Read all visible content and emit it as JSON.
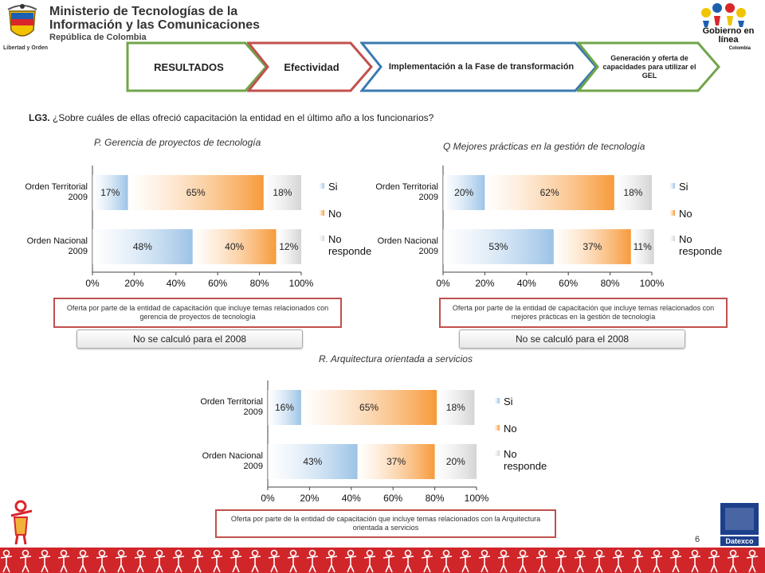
{
  "header": {
    "ministry_line1": "Ministerio de Tecnologías de la",
    "ministry_line2": "Información y las Comunicaciones",
    "ministry_line3": "República de Colombia",
    "seal_tagline": "Libertad y Orden",
    "gel_line1": "Gobierno en línea",
    "gel_line2": "Colombia"
  },
  "nav": {
    "step1": "RESULTADOS",
    "step2": "Efectividad",
    "step3": "Implementación  a la Fase de transformación",
    "step4": "Generación y oferta de capacidades para utilizar el GEL",
    "colors": {
      "green": "#70a54a",
      "red": "#c0504d",
      "blue": "#3a7ab0"
    }
  },
  "question": {
    "code": "LG3.",
    "text": "¿Sobre cuáles de ellas ofreció capacitación la entidad en el último año a los  funcionarios?"
  },
  "charts": {
    "p": {
      "title": "P. Gerencia  de proyectos de tecnología",
      "note": "Oferta por parte de la entidad de capacitación que incluye temas relacionados con gerencia de proyectos de tecnología",
      "calc": "No se calculó para el 2008"
    },
    "q": {
      "title": "Q Mejores prácticas en la gestión de tecnología",
      "note": "Oferta por parte de la entidad de capacitación que incluye temas relacionados con mejores prácticas en la gestión de tecnología",
      "calc": "No se calculó para el 2008"
    },
    "r": {
      "title": "R. Arquitectura orientada a servicios",
      "note": "Oferta por parte de la entidad de capacitación que incluye temas relacionados con la Arquitectura orientada a servicios"
    }
  },
  "page_number": "6",
  "datexco_label": "Datexco",
  "chart_data": [
    {
      "type": "bar",
      "orientation": "horizontal",
      "stacked": true,
      "title": "P. Gerencia  de proyectos de tecnología",
      "categories": [
        "Orden Territorial 2009",
        "Orden Nacional 2009"
      ],
      "series": [
        {
          "name": "Si",
          "values": [
            17,
            48
          ],
          "color": "#9cc3e6"
        },
        {
          "name": "No",
          "values": [
            65,
            40
          ],
          "color": "#f79a3a"
        },
        {
          "name": "No responde",
          "values": [
            18,
            12
          ],
          "color": "#d4d4d4"
        }
      ],
      "xticks": [
        "0%",
        "20%",
        "40%",
        "60%",
        "80%",
        "100%"
      ],
      "xlim": [
        0,
        100
      ],
      "legend": "right"
    },
    {
      "type": "bar",
      "orientation": "horizontal",
      "stacked": true,
      "title": "Q Mejores prácticas en la gestión de tecnología",
      "categories": [
        "Orden Territorial 2009",
        "Orden Nacional 2009"
      ],
      "series": [
        {
          "name": "Si",
          "values": [
            20,
            53
          ],
          "color": "#9cc3e6"
        },
        {
          "name": "No",
          "values": [
            62,
            37
          ],
          "color": "#f79a3a"
        },
        {
          "name": "No responde",
          "values": [
            18,
            11
          ],
          "color": "#d4d4d4"
        }
      ],
      "xticks": [
        "0%",
        "20%",
        "40%",
        "60%",
        "80%",
        "100%"
      ],
      "xlim": [
        0,
        100
      ],
      "legend": "right"
    },
    {
      "type": "bar",
      "orientation": "horizontal",
      "stacked": true,
      "title": "R. Arquitectura orientada a servicios",
      "categories": [
        "Orden Territorial 2009",
        "Orden Nacional 2009"
      ],
      "series": [
        {
          "name": "Si",
          "values": [
            16,
            43
          ],
          "color": "#9cc3e6"
        },
        {
          "name": "No",
          "values": [
            65,
            37
          ],
          "color": "#f79a3a"
        },
        {
          "name": "No responde",
          "values": [
            18,
            20
          ],
          "color": "#d4d4d4"
        }
      ],
      "xticks": [
        "0%",
        "20%",
        "40%",
        "60%",
        "80%",
        "100%"
      ],
      "xlim": [
        0,
        100
      ],
      "legend": "right"
    }
  ]
}
